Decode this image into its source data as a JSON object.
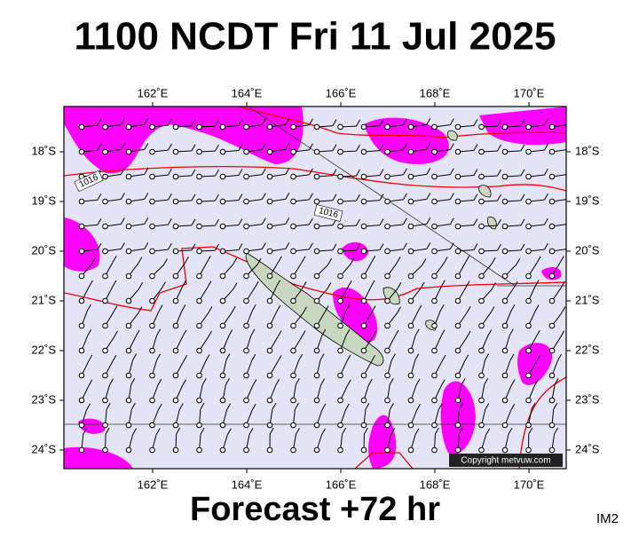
{
  "map": {
    "title": "1100 NCDT Fri 11 Jul 2025",
    "footer": "Forecast +72 hr",
    "image_id": "IM2",
    "copyright": "Copyright metvuw.com",
    "xticks": [
      {
        "value": 162,
        "label": "162˚E"
      },
      {
        "value": 164,
        "label": "164˚E"
      },
      {
        "value": 166,
        "label": "166˚E"
      },
      {
        "value": 168,
        "label": "168˚E"
      },
      {
        "value": 170,
        "label": "170˚E"
      }
    ],
    "yticks": [
      {
        "value": 18,
        "label": "18˚S"
      },
      {
        "value": 19,
        "label": "19˚S"
      },
      {
        "value": 20,
        "label": "20˚S"
      },
      {
        "value": 21,
        "label": "21˚S"
      },
      {
        "value": 22,
        "label": "22˚S"
      },
      {
        "value": 23,
        "label": "23˚S"
      },
      {
        "value": 24,
        "label": "24˚S"
      }
    ],
    "isobar_labels": [
      "1016",
      "1016"
    ]
  }
}
